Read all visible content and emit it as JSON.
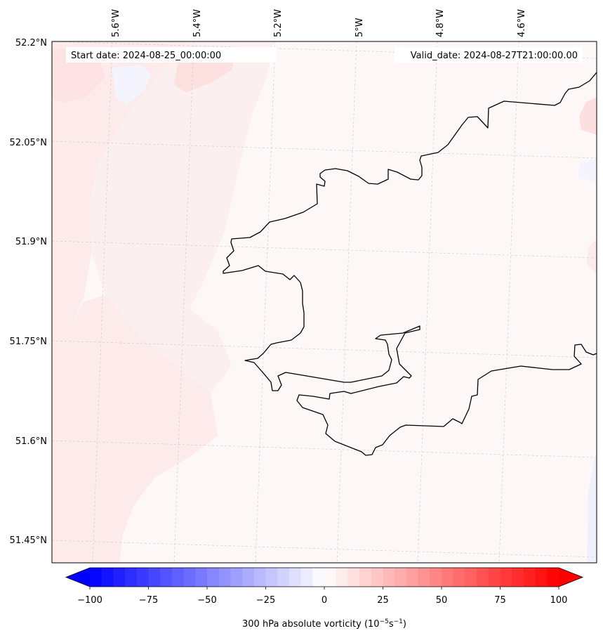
{
  "map": {
    "start_date_label": "Start date: 2024-08-25_00:00:00",
    "valid_date_label": "Valid_date: 2024-08-27T21:00:00.00",
    "lon_labels": [
      "5.6°W",
      "5.4°W",
      "5.2°W",
      "5°W",
      "4.8°W",
      "4.6°W"
    ],
    "lat_labels": [
      "52.2°N",
      "52.05°N",
      "51.9°N",
      "51.75°N",
      "51.6°N",
      "51.45°N"
    ],
    "gridlines": true,
    "field": "300 hPa absolute vorticity",
    "land_fill_color": "#fdf6f6",
    "positive_tint_color": "#fde2e2",
    "negative_tint_color": "#f3f4fd"
  },
  "colorbar": {
    "label_prefix": "300 hPa absolute vorticity (10",
    "label_exp1": "−5",
    "label_mid": "s",
    "label_exp2": "−1",
    "label_suffix": ")",
    "min": -100,
    "max": 100,
    "step": 5,
    "tick_values": [
      "−100",
      "−75",
      "−50",
      "−25",
      "0",
      "25",
      "50",
      "75",
      "100"
    ],
    "min_color": "#0000ff",
    "mid_color": "#ffffff",
    "max_color": "#ff0000",
    "extend": "both"
  }
}
